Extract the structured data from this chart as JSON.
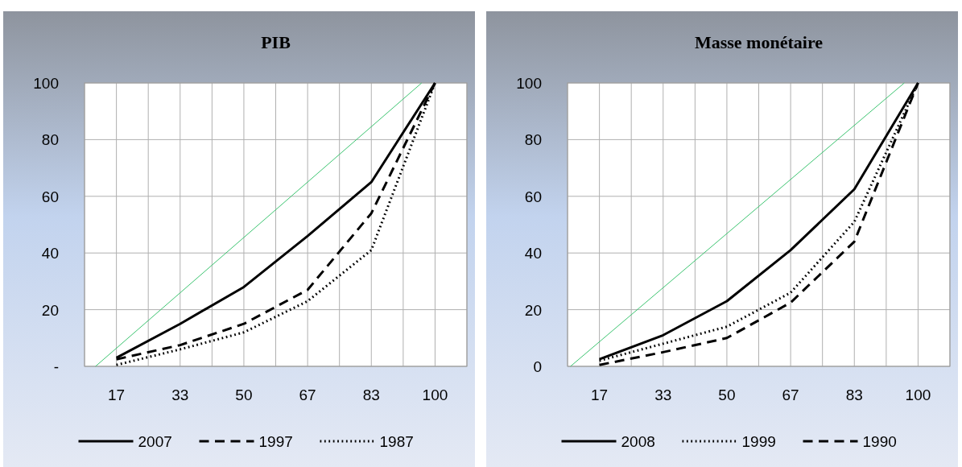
{
  "chart_data": [
    {
      "type": "line",
      "title": "PIB",
      "xlim": [
        8.33,
        108.33
      ],
      "xticks": [
        {
          "value": 8.33,
          "label": null
        },
        {
          "value": 16.67,
          "label": "17"
        },
        {
          "value": 25,
          "label": null
        },
        {
          "value": 33.33,
          "label": "33"
        },
        {
          "value": 41.67,
          "label": null
        },
        {
          "value": 50,
          "label": "50"
        },
        {
          "value": 58.33,
          "label": null
        },
        {
          "value": 66.67,
          "label": "67"
        },
        {
          "value": 75,
          "label": null
        },
        {
          "value": 83.33,
          "label": "83"
        },
        {
          "value": 91.67,
          "label": null
        },
        {
          "value": 100,
          "label": "100"
        },
        {
          "value": 108.33,
          "label": null
        }
      ],
      "ylim": [
        0,
        100
      ],
      "yticks": [
        {
          "value": 0,
          "label": "-"
        },
        20,
        40,
        60,
        80,
        100
      ],
      "grid": true,
      "legend": "bottom",
      "marker": "none",
      "x": [
        16.67,
        33.33,
        50,
        66.67,
        83.33,
        100
      ],
      "series": [
        {
          "name": "2007",
          "color": "#000000",
          "line_style": "solid",
          "values": [
            3,
            15,
            28,
            46,
            65,
            100
          ]
        },
        {
          "name": "1997",
          "color": "#000000",
          "line_style": "dashed",
          "values": [
            2.5,
            7.5,
            15,
            27,
            54,
            100
          ]
        },
        {
          "name": "1987",
          "color": "#000000",
          "line_style": "dotted",
          "values": [
            0.5,
            6,
            12,
            23,
            41,
            100
          ]
        },
        {
          "color": "#3cc470",
          "line_style": "solid",
          "x": [
            11.2,
            96.5
          ],
          "values": [
            0,
            100
          ]
        }
      ]
    },
    {
      "type": "line",
      "title": "Masse monétaire",
      "xlim": [
        8.33,
        108.33
      ],
      "xticks": [
        {
          "value": 8.33,
          "label": null
        },
        {
          "value": 16.67,
          "label": "17"
        },
        {
          "value": 25,
          "label": null
        },
        {
          "value": 33.33,
          "label": "33"
        },
        {
          "value": 41.67,
          "label": null
        },
        {
          "value": 50,
          "label": "50"
        },
        {
          "value": 58.33,
          "label": null
        },
        {
          "value": 66.67,
          "label": "67"
        },
        {
          "value": 75,
          "label": null
        },
        {
          "value": 83.33,
          "label": "83"
        },
        {
          "value": 91.67,
          "label": null
        },
        {
          "value": 100,
          "label": "100"
        },
        {
          "value": 108.33,
          "label": null
        }
      ],
      "ylim": [
        0,
        100
      ],
      "yticks": [
        0,
        20,
        40,
        60,
        80,
        100
      ],
      "grid": true,
      "legend": "bottom",
      "marker": "none",
      "x": [
        16.67,
        33.33,
        50,
        66.67,
        83.33,
        100
      ],
      "series": [
        {
          "name": "2008",
          "color": "#000000",
          "line_style": "solid",
          "values": [
            2.5,
            11,
            23,
            41,
            62.5,
            100
          ]
        },
        {
          "name": "1999",
          "color": "#000000",
          "line_style": "dotted",
          "values": [
            2,
            8,
            14,
            26,
            51,
            100
          ]
        },
        {
          "name": "1990",
          "color": "#000000",
          "line_style": "dashed",
          "values": [
            0.5,
            5,
            10,
            22.5,
            44,
            100
          ]
        },
        {
          "color": "#3cc470",
          "line_style": "solid",
          "x": [
            9.1,
            96.4
          ],
          "values": [
            0,
            100
          ]
        }
      ]
    }
  ]
}
